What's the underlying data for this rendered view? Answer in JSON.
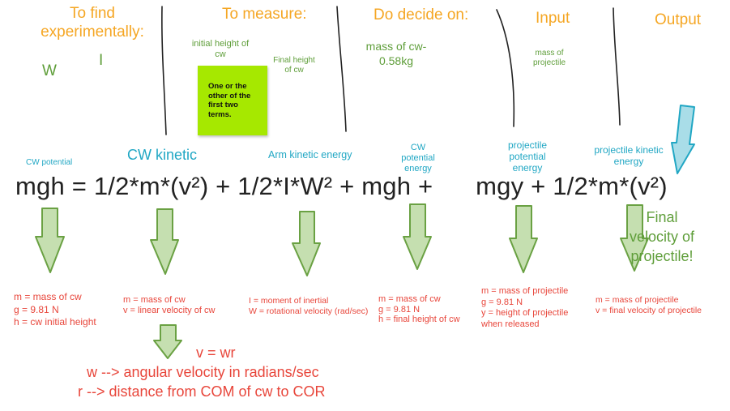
{
  "headers": {
    "find": "To find experimentally:",
    "measure": "To measure:",
    "decide": "Do decide on:",
    "input": "Input",
    "output": "Output"
  },
  "find_vars": {
    "w": "W",
    "i": "I"
  },
  "measure_items": {
    "initial_height": "initial height of cw",
    "final_height": "Final height of cw"
  },
  "sticky_note": "One or the other of the first two terms.",
  "decide_items": {
    "mass": "mass of cw- 0.58kg"
  },
  "input_items": {
    "mass": "mass of projectile"
  },
  "term_labels": {
    "cw_potential": "CW potential",
    "cw_kinetic": "CW kinetic",
    "arm_kinetic": "Arm kinetic energy",
    "cw_potential_2": "CW potential energy",
    "projectile_potential": "projectile potential energy",
    "projectile_kinetic": "projectile kinetic energy"
  },
  "equation": "mgh = 1/2*m*(v²) + 1/2*I*W² + mgh +      mgy + 1/2*m*(v²)",
  "final_velocity_label": "Final velocity of projectile!",
  "notes": {
    "n1": [
      "m = mass of cw",
      "g = 9.81 N",
      "h = cw initial height"
    ],
    "n2": [
      "m = mass of cw",
      "v = linear velocity of cw"
    ],
    "n3": [
      "I = moment of inertial",
      "W = rotational velocity (rad/sec)"
    ],
    "n4": [
      "m = mass of cw",
      "g = 9.81 N",
      "h = final height of cw"
    ],
    "n5": [
      "m = mass of projectile",
      "g = 9.81 N",
      "y = height of projectile",
      "when released"
    ],
    "n6": [
      "m = mass of projectile",
      "v = final velocity of projectile"
    ]
  },
  "bottom": {
    "v_eq": "v = wr",
    "w_def": "w --> angular velocity in radians/sec",
    "r_def": "r --> distance from COM of cw to COR"
  },
  "colors": {
    "header": "#f5a623",
    "label_green": "#5f9e3a",
    "label_teal": "#21a7c4",
    "note_red": "#e8463b",
    "arrow_fill": "#c5dfb0",
    "arrow_stroke": "#6aa143",
    "output_arrow_fill": "#a9dde8",
    "output_arrow_stroke": "#21a7c4",
    "sticky": "#a6e800"
  }
}
